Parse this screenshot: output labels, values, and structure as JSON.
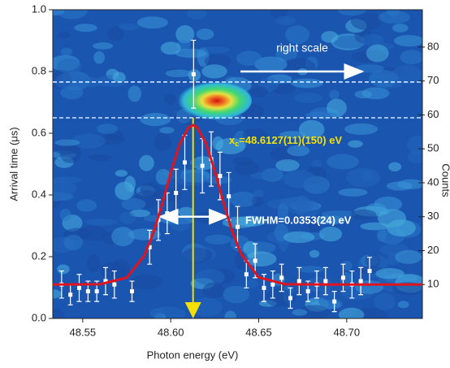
{
  "chart_data": {
    "type": "scatter",
    "xlabel": "Photon energy (eV)",
    "ylabel": "Arrival time (μs)",
    "y2label": "Counts",
    "xlim": [
      48.533,
      48.743
    ],
    "xticks": [
      48.55,
      {
        "value": 48.6,
        "label": "48.60"
      },
      48.65,
      {
        "value": 48.7,
        "label": "48.70"
      }
    ],
    "ylim": [
      0,
      1
    ],
    "yticks": [
      {
        "value": 0,
        "label": "0.0"
      },
      0.2,
      0.4,
      0.6,
      0.8,
      {
        "value": 1,
        "label": "1.0"
      }
    ],
    "y2lim": [
      0,
      91
    ],
    "y2ticks": [
      10,
      20,
      30,
      40,
      50,
      60,
      70,
      80
    ],
    "points": {
      "axis": "y2",
      "color": "#ffffff",
      "x": [
        48.538,
        48.543,
        48.548,
        48.553,
        48.558,
        48.563,
        48.568,
        48.578,
        48.588,
        48.593,
        48.598,
        48.603,
        48.608,
        48.613,
        48.618,
        48.623,
        48.628,
        48.633,
        48.638,
        48.643,
        48.648,
        48.653,
        48.658,
        48.663,
        48.668,
        48.673,
        48.678,
        48.683,
        48.688,
        48.693,
        48.698,
        48.703,
        48.708,
        48.713
      ],
      "values": [
        10,
        7,
        9,
        8,
        8,
        11,
        10,
        8,
        21,
        29,
        31,
        37,
        46,
        72,
        45,
        47,
        42,
        36,
        27,
        13,
        17,
        9,
        10,
        12,
        6,
        11,
        8,
        10,
        11,
        5,
        12,
        10,
        11,
        14
      ],
      "errors": [
        4,
        3,
        4,
        3,
        3,
        4,
        4,
        3,
        5,
        6,
        6,
        7,
        8,
        10,
        8,
        8,
        7,
        7,
        6,
        4,
        5,
        4,
        4,
        4,
        3,
        4,
        3,
        4,
        4,
        3,
        4,
        4,
        4,
        4
      ]
    },
    "fit": {
      "axis": "y2",
      "color": "#e0141e",
      "x": [
        48.533,
        48.56,
        48.575,
        48.585,
        48.59,
        48.595,
        48.6,
        48.605,
        48.61,
        48.6127,
        48.615,
        48.62,
        48.625,
        48.63,
        48.635,
        48.64,
        48.65,
        48.665,
        48.69,
        48.743
      ],
      "values": [
        10,
        10.1,
        12,
        18.5,
        25,
        33.4,
        42.9,
        51.2,
        56.2,
        57,
        56.4,
        51.7,
        43.6,
        34.2,
        25.6,
        19,
        12.1,
        10.1,
        10,
        10
      ]
    },
    "hlines": [
      0.766,
      0.65
    ],
    "center_line": {
      "x": 48.6127,
      "ylim": [
        0,
        0.65
      ],
      "color": "#f5e000"
    },
    "annotations": {
      "right_scale": "right scale",
      "xc_symbol": "x",
      "xc_sub": "c",
      "xc_text": "=48.6127(11)(150) eV",
      "fwhm_text": "FWHM=0.0353(24) eV",
      "fwhm_range": [
        48.594,
        48.632
      ],
      "fwhm_level": 30
    }
  }
}
